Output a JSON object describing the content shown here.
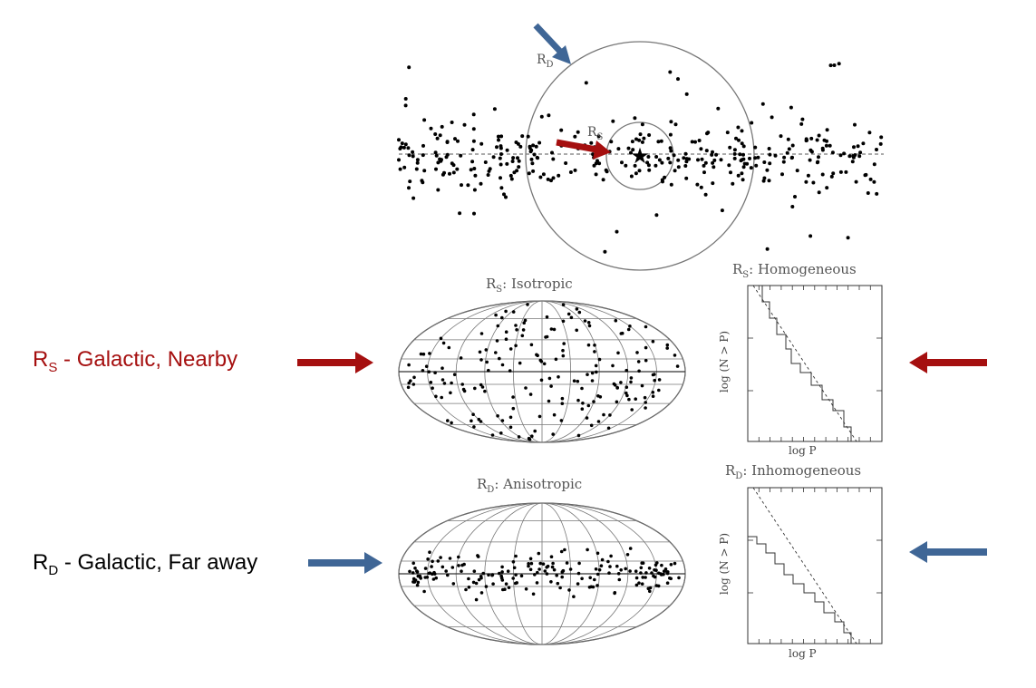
{
  "colors": {
    "nearby": "#a50f0f",
    "faraway": "#3f6696",
    "ink": "#000000",
    "grid": "#777777"
  },
  "top_diagram": {
    "rd_label_main": "R",
    "rd_label_sub": "D",
    "rs_label_main": "R",
    "rs_label_sub": "S",
    "center_marker": "star-icon"
  },
  "rows": [
    {
      "id": "nearby",
      "label_main": "R",
      "label_sub": "S",
      "label_rest": " - Galactic, Nearby",
      "sky_title_main": "R",
      "sky_title_sub": "S",
      "sky_title_rest": ": Isotropic",
      "logn_title_main": "R",
      "logn_title_sub": "S",
      "logn_title_rest": ": Homogeneous",
      "logn_xlabel": "log P",
      "logn_ylabel": "log (N > P)"
    },
    {
      "id": "faraway",
      "label_main": "R",
      "label_sub": "D",
      "label_rest": " - Galactic, Far away",
      "sky_title_main": "R",
      "sky_title_sub": "D",
      "sky_title_rest": ": Anisotropic",
      "logn_title_main": "R",
      "logn_title_sub": "D",
      "logn_title_rest": ": Inhomogeneous",
      "logn_xlabel": "log P",
      "logn_ylabel": "log (N > P)"
    }
  ]
}
